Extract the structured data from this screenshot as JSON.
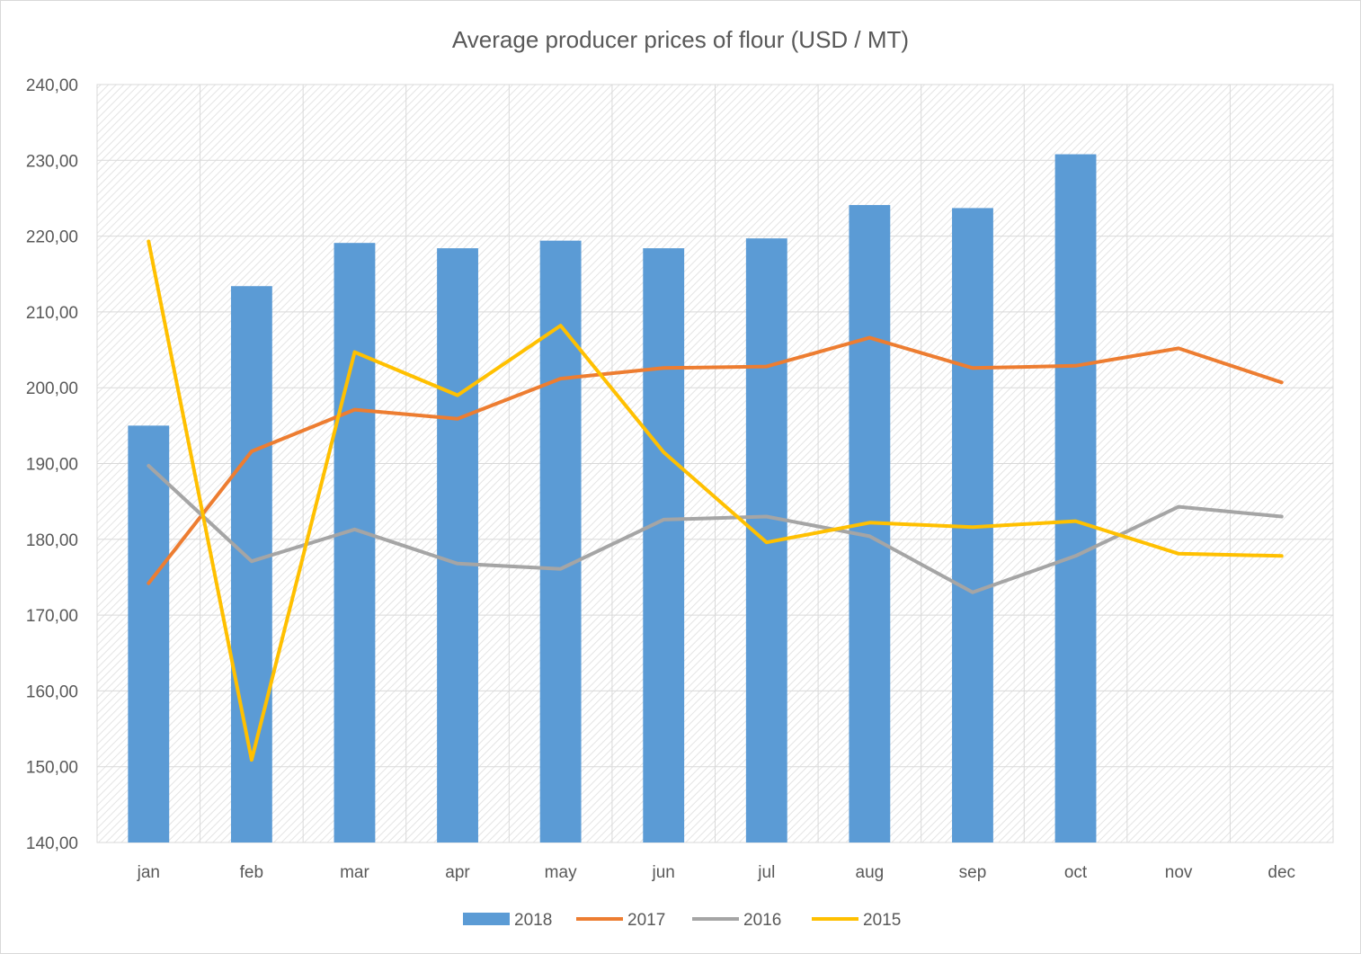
{
  "chart_data": {
    "type": "bar",
    "title": "Average producer prices of flour (USD / MT)",
    "xlabel": "",
    "ylabel": "",
    "categories": [
      "jan",
      "feb",
      "mar",
      "apr",
      "may",
      "jun",
      "jul",
      "aug",
      "sep",
      "oct",
      "nov",
      "dec"
    ],
    "ylim": [
      140,
      240
    ],
    "y_ticks": [
      "140,00",
      "150,00",
      "160,00",
      "170,00",
      "180,00",
      "190,00",
      "200,00",
      "210,00",
      "220,00",
      "230,00",
      "240,00"
    ],
    "y_tick_values": [
      140,
      150,
      160,
      170,
      180,
      190,
      200,
      210,
      220,
      230,
      240
    ],
    "grid": true,
    "legend_position": "bottom",
    "series": [
      {
        "name": "2018",
        "type": "bar",
        "color": "#5b9bd5",
        "values": [
          195.0,
          213.4,
          219.1,
          218.4,
          219.4,
          218.4,
          219.7,
          224.1,
          223.7,
          230.8,
          null,
          null
        ]
      },
      {
        "name": "2017",
        "type": "line",
        "color": "#ed7d31",
        "values": [
          174.2,
          191.6,
          197.1,
          195.9,
          201.2,
          202.6,
          202.8,
          206.6,
          202.6,
          202.9,
          205.2,
          200.7
        ]
      },
      {
        "name": "2016",
        "type": "line",
        "color": "#a5a5a5",
        "values": [
          189.7,
          177.1,
          181.3,
          176.8,
          176.1,
          182.6,
          183.0,
          180.4,
          173.0,
          177.8,
          184.3,
          183.0
        ]
      },
      {
        "name": "2015",
        "type": "line",
        "color": "#ffc000",
        "values": [
          219.3,
          150.9,
          204.7,
          199.0,
          208.2,
          191.5,
          179.6,
          182.2,
          181.6,
          182.4,
          178.1,
          177.8
        ]
      }
    ]
  }
}
